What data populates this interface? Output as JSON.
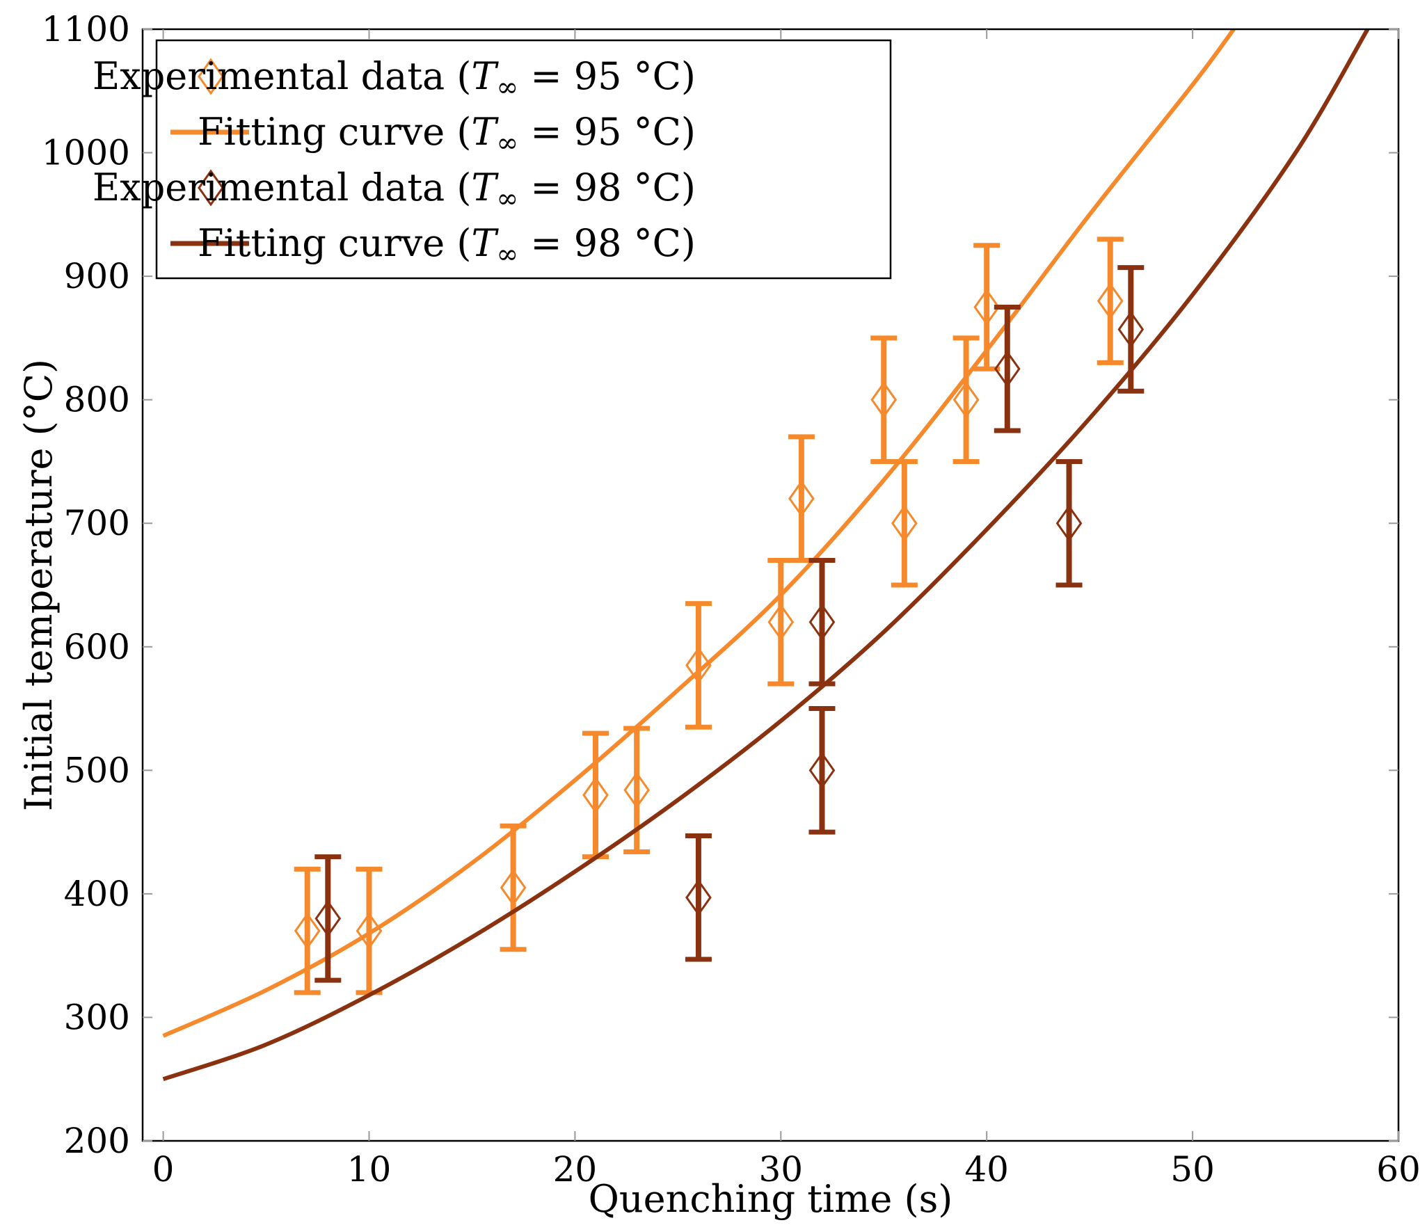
{
  "chart_data": {
    "type": "scatter",
    "xlabel": "Quenching time (s)",
    "ylabel": "Initial temperature (°C)",
    "xlim": [
      -1,
      60
    ],
    "ylim": [
      200,
      1100
    ],
    "xticks": [
      0,
      10,
      20,
      30,
      40,
      50,
      60
    ],
    "yticks": [
      200,
      300,
      400,
      500,
      600,
      700,
      800,
      900,
      1000,
      1100
    ],
    "grid": false,
    "legend_position": "top-left",
    "series": [
      {
        "name": "Experimental data (T∞ = 95 °C)",
        "kind": "points",
        "color": "#f5892b",
        "points": [
          {
            "x": 7,
            "y": 370,
            "err": 50
          },
          {
            "x": 10,
            "y": 370,
            "err": 50
          },
          {
            "x": 17,
            "y": 405,
            "err": 50
          },
          {
            "x": 21,
            "y": 480,
            "err": 50
          },
          {
            "x": 23,
            "y": 484,
            "err": 50
          },
          {
            "x": 26,
            "y": 585,
            "err": 50
          },
          {
            "x": 30,
            "y": 620,
            "err": 50
          },
          {
            "x": 31,
            "y": 720,
            "err": 50
          },
          {
            "x": 35,
            "y": 800,
            "err": 50
          },
          {
            "x": 36,
            "y": 700,
            "err": 50
          },
          {
            "x": 39,
            "y": 800,
            "err": 50
          },
          {
            "x": 40,
            "y": 875,
            "err": 50
          },
          {
            "x": 46,
            "y": 880,
            "err": 50
          }
        ]
      },
      {
        "name": "Fitting curve (T∞ = 95 °C)",
        "kind": "curve",
        "color": "#f5892b",
        "x": [
          0,
          5,
          10,
          15,
          20,
          25,
          30,
          35,
          40,
          45,
          50,
          52
        ],
        "values": [
          285,
          322,
          368,
          425,
          492,
          565,
          642,
          735,
          840,
          950,
          1055,
          1100
        ]
      },
      {
        "name": "Experimental data (T∞ = 98 °C)",
        "kind": "points",
        "color": "#8a3210",
        "points": [
          {
            "x": 8,
            "y": 380,
            "err": 50
          },
          {
            "x": 26,
            "y": 397,
            "err": 50
          },
          {
            "x": 32,
            "y": 620,
            "err": 50
          },
          {
            "x": 32,
            "y": 500,
            "err": 50
          },
          {
            "x": 41,
            "y": 825,
            "err": 50
          },
          {
            "x": 44,
            "y": 700,
            "err": 50
          },
          {
            "x": 47,
            "y": 857,
            "err": 50
          }
        ]
      },
      {
        "name": "Fitting curve (T∞ = 98 °C)",
        "kind": "curve",
        "color": "#8a3210",
        "x": [
          0,
          5,
          10,
          15,
          20,
          25,
          30,
          35,
          40,
          45,
          50,
          55,
          58.5
        ],
        "values": [
          250,
          278,
          318,
          365,
          418,
          476,
          540,
          612,
          695,
          785,
          885,
          1000,
          1100
        ]
      }
    ],
    "legend": [
      {
        "prefix": "Experimental data (",
        "T": "T",
        "sub": "∞",
        "suffix": " = 95 °C)",
        "marker": "diamond",
        "color": "#f5892b"
      },
      {
        "prefix": "Fitting curve (",
        "T": "T",
        "sub": "∞",
        "suffix": " = 95 °C)",
        "marker": "line",
        "color": "#f5892b"
      },
      {
        "prefix": "Experimental data (",
        "T": "T",
        "sub": "∞",
        "suffix": " = 98 °C)",
        "marker": "diamond",
        "color": "#8a3210"
      },
      {
        "prefix": "Fitting curve (",
        "T": "T",
        "sub": "∞",
        "suffix": " = 98 °C)",
        "marker": "line",
        "color": "#8a3210"
      }
    ]
  }
}
